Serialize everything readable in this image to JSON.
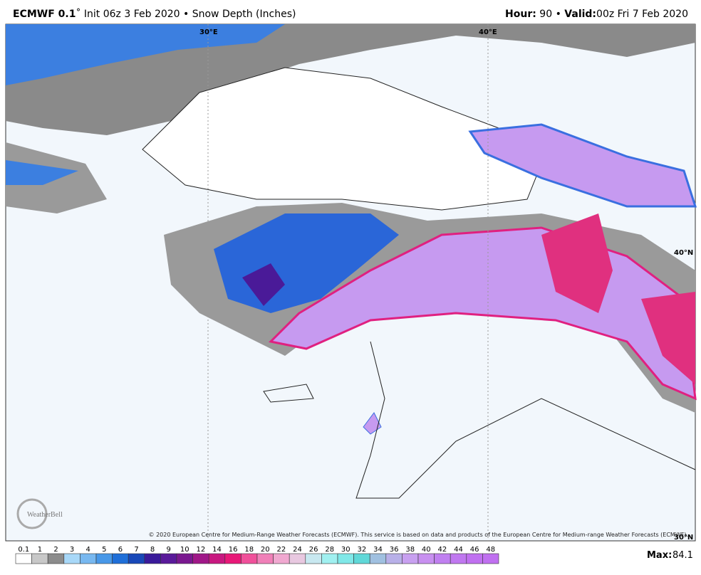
{
  "header": {
    "model": "ECMWF 0.1",
    "run": "˚ Init 06z 3 Feb 2020 • Snow Depth (Inches)",
    "hour_label": "Hour:",
    "hour": 90,
    "separator": "•",
    "valid_label": "Valid:",
    "valid": "00z Fri 7 Feb 2020"
  },
  "map": {
    "lon_labels": [
      "30°E",
      "40°E"
    ],
    "lat_labels": [
      "40°N",
      "30°N"
    ],
    "logo": "WeatherBell",
    "copyright": "© 2020 European Centre for Medium-Range Weather Forecasts (ECMWF). This service is based on data and products of the European Centre for Medium-range Weather Forecasts (ECMWF)."
  },
  "legend": {
    "levels": [
      0.1,
      1,
      2,
      3,
      4,
      5,
      6,
      7,
      8,
      9,
      10,
      12,
      14,
      16,
      18,
      20,
      22,
      24,
      26,
      28,
      30,
      32,
      34,
      36,
      38,
      40,
      42,
      44,
      46,
      48
    ],
    "colors": [
      "#ffffff",
      "#c8c8c8",
      "#8c8c8c",
      "#a8d8f8",
      "#78b8f0",
      "#4898e8",
      "#1f6fd8",
      "#1848b8",
      "#3a1a9a",
      "#5a1a9a",
      "#7a1890",
      "#a01888",
      "#c81880",
      "#e81878",
      "#f0509a",
      "#f080b8",
      "#f0a8d0",
      "#e8c8e0",
      "#c8e8f0",
      "#a0f0f0",
      "#80e8e8",
      "#60d8d8",
      "#a0c0e0",
      "#b8b0e8",
      "#c8a0f0",
      "#c890f0",
      "#c080f0",
      "#c078f0",
      "#c070f0",
      "#c070f0"
    ]
  },
  "footer": {
    "max_label": "Max:",
    "max": 84.1
  }
}
